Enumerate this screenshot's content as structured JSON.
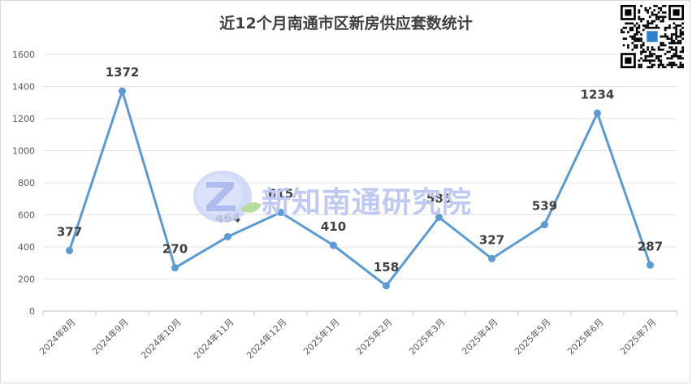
{
  "chart_data": {
    "type": "line",
    "title": "近12个月南通市区新房供应套数统计",
    "categories": [
      "2024年8月",
      "2024年9月",
      "2024年10月",
      "2024年11月",
      "2024年12月",
      "2025年1月",
      "2025年2月",
      "2025年3月",
      "2025年4月",
      "2025年5月",
      "2025年6月",
      "2025年7月"
    ],
    "series": [
      {
        "values": [
          377,
          1372,
          270,
          464,
          615,
          410,
          158,
          585,
          327,
          539,
          1234,
          287
        ]
      }
    ],
    "yticks": [
      0,
      200,
      400,
      600,
      800,
      1000,
      1200,
      1400,
      1600
    ],
    "ylim": [
      0,
      1600
    ],
    "grid": true,
    "legend": "none",
    "line_color": "#5b9bd5",
    "label_color": "#404040"
  },
  "watermark": {
    "text": "新知南通研究院",
    "icon": "z-logo-icon",
    "color": "#bfc9f2"
  },
  "qr_code": {
    "icon": "qr-code-icon"
  }
}
